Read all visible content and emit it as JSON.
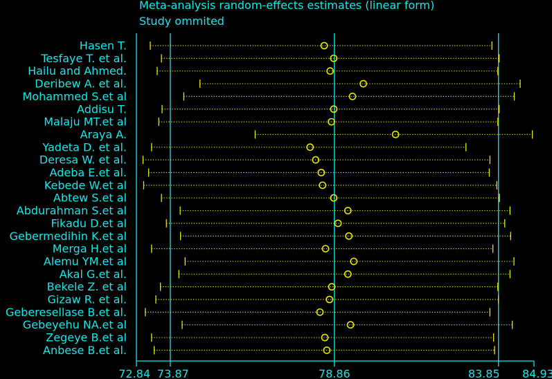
{
  "chart_data": {
    "type": "forest-plot",
    "title": "Meta-analysis random-effects estimates (linear form)",
    "subtitle": "Study ommited",
    "x_ticks": [
      72.84,
      73.87,
      78.86,
      83.85,
      84.93
    ],
    "x_tick_labels": [
      "72.84",
      "73.87",
      "78.86",
      "83.85",
      "84.93"
    ],
    "xlim": [
      72.84,
      84.93
    ],
    "reference_lines": [
      73.87,
      78.86,
      83.85
    ],
    "studies": [
      {
        "name": "Hasen T.",
        "estimate": 78.55,
        "lower": 73.26,
        "upper": 83.65
      },
      {
        "name": "Tesfaye T. et al.",
        "estimate": 78.84,
        "lower": 73.6,
        "upper": 83.87
      },
      {
        "name": "Hailu and Ahmed.",
        "estimate": 78.73,
        "lower": 73.47,
        "upper": 83.83
      },
      {
        "name": "Deribew A. et al.",
        "estimate": 79.74,
        "lower": 74.77,
        "upper": 84.51
      },
      {
        "name": "Mohammed S.et al",
        "estimate": 79.41,
        "lower": 74.28,
        "upper": 84.33
      },
      {
        "name": "Addisu T.",
        "estimate": 78.84,
        "lower": 73.62,
        "upper": 83.87
      },
      {
        "name": "Malaju MT.et al",
        "estimate": 78.77,
        "lower": 73.52,
        "upper": 83.83
      },
      {
        "name": "Araya A.",
        "estimate": 80.72,
        "lower": 76.45,
        "upper": 84.88
      },
      {
        "name": "Yadeta D. et al.",
        "estimate": 78.12,
        "lower": 73.3,
        "upper": 82.86
      },
      {
        "name": "Deresa W. et al.",
        "estimate": 78.29,
        "lower": 73.04,
        "upper": 83.59
      },
      {
        "name": "Adeba E.et al.",
        "estimate": 78.46,
        "lower": 73.21,
        "upper": 83.57
      },
      {
        "name": "Kebede W.et al",
        "estimate": 78.5,
        "lower": 73.06,
        "upper": 83.8
      },
      {
        "name": "Abtew S.et al",
        "estimate": 78.84,
        "lower": 73.6,
        "upper": 83.88
      },
      {
        "name": "Abdurahman S.et al",
        "estimate": 79.27,
        "lower": 74.17,
        "upper": 84.2
      },
      {
        "name": "Fikadu D.et al",
        "estimate": 78.97,
        "lower": 73.75,
        "upper": 84.04
      },
      {
        "name": "Gebermedihin K.et al",
        "estimate": 79.3,
        "lower": 74.18,
        "upper": 84.22
      },
      {
        "name": "Merga H.et al",
        "estimate": 78.59,
        "lower": 73.3,
        "upper": 83.68
      },
      {
        "name": "Alemu YM.et al",
        "estimate": 79.45,
        "lower": 74.32,
        "upper": 84.32
      },
      {
        "name": "Akal G.et al.",
        "estimate": 79.27,
        "lower": 74.13,
        "upper": 84.2
      },
      {
        "name": "Bekele Z. et al",
        "estimate": 78.78,
        "lower": 73.57,
        "upper": 83.83
      },
      {
        "name": "Gizaw R. et al.",
        "estimate": 78.71,
        "lower": 73.43,
        "upper": 83.85
      },
      {
        "name": "Geberesellase B.et al.",
        "estimate": 78.42,
        "lower": 73.11,
        "upper": 83.59
      },
      {
        "name": "Gebeyehu NA.et al",
        "estimate": 79.35,
        "lower": 74.23,
        "upper": 84.27
      },
      {
        "name": "Zegeye B.et al",
        "estimate": 78.57,
        "lower": 73.3,
        "upper": 83.7
      },
      {
        "name": "Anbese B.et al.",
        "estimate": 78.63,
        "lower": 73.38,
        "upper": 83.73
      }
    ]
  },
  "colors": {
    "background": "#000000",
    "text": "#19e6e6",
    "axis": "#19e6e6",
    "ci_line": "#e6e600",
    "marker": "#e6e600"
  }
}
